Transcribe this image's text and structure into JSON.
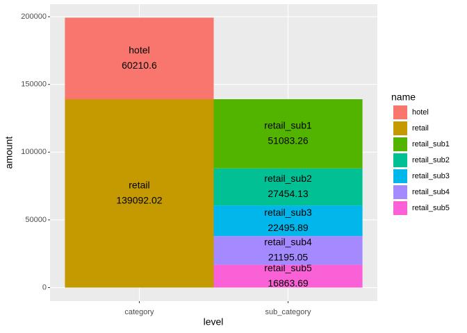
{
  "chart_data": {
    "type": "stacked_bar",
    "x_label": "level",
    "y_label": "amount",
    "legend_title": "name",
    "categories": [
      "category",
      "sub_category"
    ],
    "series": [
      {
        "name": "hotel",
        "color": "#F8766D",
        "values": [
          60210.6,
          null
        ]
      },
      {
        "name": "retail",
        "color": "#C49A00",
        "values": [
          139092.02,
          null
        ]
      },
      {
        "name": "retail_sub1",
        "color": "#53B400",
        "values": [
          null,
          51083.26
        ]
      },
      {
        "name": "retail_sub2",
        "color": "#00C094",
        "values": [
          null,
          27454.13
        ]
      },
      {
        "name": "retail_sub3",
        "color": "#00B6EB",
        "values": [
          null,
          22495.89
        ]
      },
      {
        "name": "retail_sub4",
        "color": "#A58AFF",
        "values": [
          null,
          21195.05
        ]
      },
      {
        "name": "retail_sub5",
        "color": "#FB61D7",
        "values": [
          null,
          16863.69
        ]
      }
    ],
    "ylim": [
      -9965,
      209268
    ],
    "yticks": [
      0,
      50000,
      100000,
      150000,
      200000
    ],
    "grid": true,
    "legend_position": "right"
  }
}
